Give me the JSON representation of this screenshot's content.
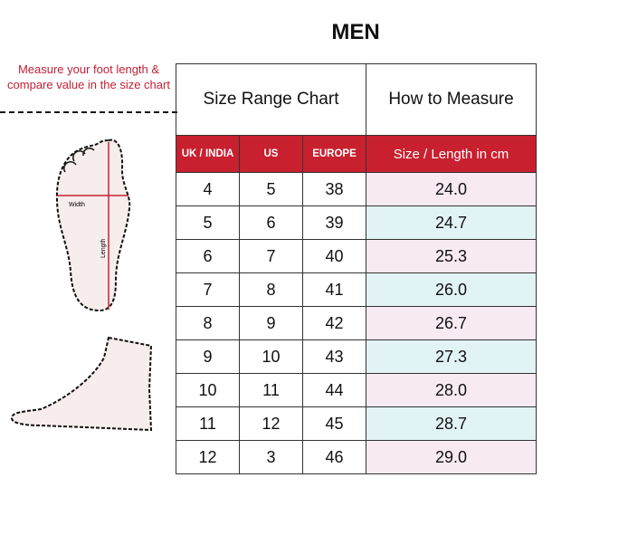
{
  "title": "MEN",
  "note": "Measure your foot length & compare value in the size chart",
  "foot_labels": {
    "width": "Width",
    "length": "Length"
  },
  "table": {
    "header_left": "Size Range Chart",
    "header_right": "How to Measure",
    "columns": [
      "UK / INDIA",
      "US",
      "EUROPE",
      "Size / Length in cm"
    ],
    "rows": [
      [
        "4",
        "5",
        "38",
        "24.0"
      ],
      [
        "5",
        "6",
        "39",
        "24.7"
      ],
      [
        "6",
        "7",
        "40",
        "25.3"
      ],
      [
        "7",
        "8",
        "41",
        "26.0"
      ],
      [
        "8",
        "9",
        "42",
        "26.7"
      ],
      [
        "9",
        "10",
        "43",
        "27.3"
      ],
      [
        "10",
        "11",
        "44",
        "28.0"
      ],
      [
        "11",
        "12",
        "45",
        "28.7"
      ],
      [
        "12",
        "3",
        "46",
        "29.0"
      ]
    ]
  },
  "colors": {
    "accent": "#c8202f",
    "row_pink": "#f8eaf2",
    "row_cyan": "#e2f3f5"
  }
}
